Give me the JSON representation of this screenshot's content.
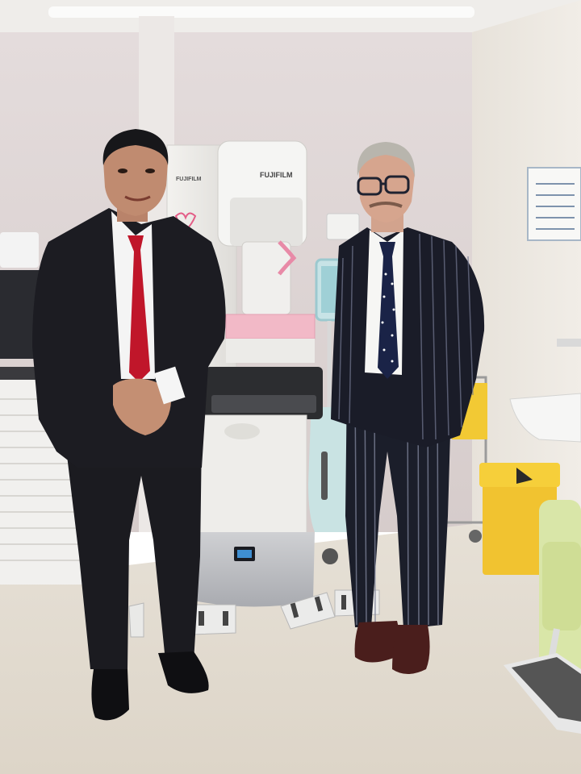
{
  "photo": {
    "setting": "hospital-mammography-room",
    "machine_brand_top": "FUJIFILM",
    "machine_brand_side": "FUJIFILM",
    "colors": {
      "wall": "#ddd3d2",
      "floor": "#e4ddd2",
      "machine": "#ecebe8",
      "accent_pink": "#f2b9c7",
      "bin_yellow": "#f0c534",
      "suit_dark": "#1c1c22",
      "tie_red": "#c0162a",
      "tie_navy": "#1a2347"
    }
  }
}
